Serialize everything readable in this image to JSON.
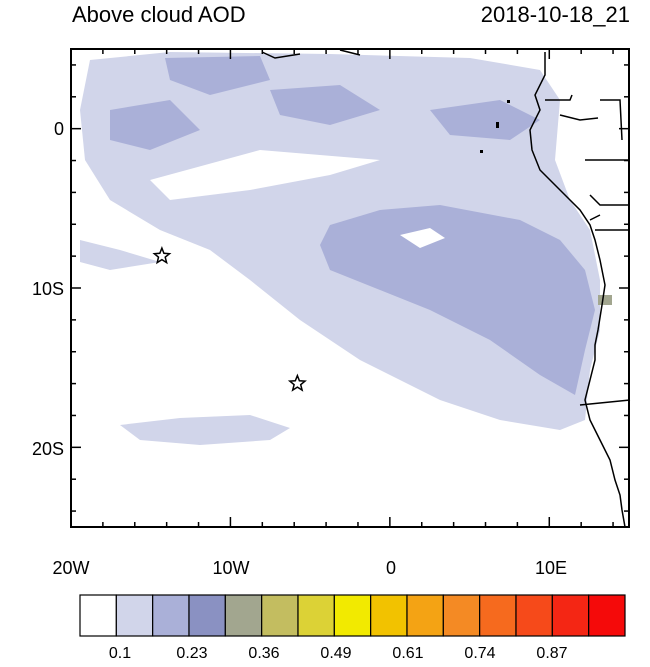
{
  "title": "Above cloud AOD",
  "timestamp": "2018-10-18_21",
  "axes": {
    "y_labels": [
      "0",
      "10S",
      "20S"
    ],
    "x_labels": [
      "20W",
      "10W",
      "0",
      "10E"
    ]
  },
  "colorbar": {
    "colors": [
      "#ffffff",
      "#d1d5ea",
      "#aab0d8",
      "#8a91c2",
      "#a2a68f",
      "#c3bd60",
      "#dcd236",
      "#f2ea00",
      "#f2c200",
      "#f4a314",
      "#f48a24",
      "#f66a1e",
      "#f64a1a",
      "#f42614",
      "#f50a0a"
    ],
    "labels": [
      "0.1",
      "0.23",
      "0.36",
      "0.49",
      "0.61",
      "0.74",
      "0.87"
    ]
  },
  "markers": [
    {
      "name": "star-marker-1",
      "lon": -14.3,
      "lat": -8.0
    },
    {
      "name": "star-marker-2",
      "lon": -5.8,
      "lat": -16.0
    }
  ]
}
